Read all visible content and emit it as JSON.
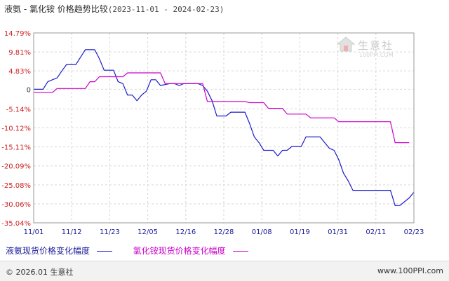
{
  "title": {
    "main": "液氨 - 氯化铵 价格趋势比较",
    "range": "(2023-11-01 - 2024-02-23)"
  },
  "watermark": {
    "name": "生意社",
    "url": "100PPI.COM"
  },
  "legend": [
    {
      "label": "液氨现货价格变化幅度",
      "color": "#1a1acc"
    },
    {
      "label": "氯化铵现货价格变化幅度",
      "color": "#cc00cc"
    }
  ],
  "footer": {
    "copyright": "© 2026.01 生意社",
    "site": "www.100PPI.com"
  },
  "chart_data": {
    "type": "line",
    "y_ticks": [
      "14.79%",
      "9.81%",
      "4.83%",
      "0",
      "-5.14%",
      "-10.12%",
      "-15.11%",
      "-20.09%",
      "-25.08%",
      "-30.06%",
      "-35.04%"
    ],
    "y_tick_values": [
      14.79,
      9.81,
      4.83,
      0,
      -5.14,
      -10.12,
      -15.11,
      -20.09,
      -25.08,
      -30.06,
      -35.04
    ],
    "ylim": [
      -35.04,
      14.79
    ],
    "x_ticks": [
      "11/01",
      "11/12",
      "11/23",
      "12/05",
      "12/16",
      "12/28",
      "01/08",
      "01/19",
      "01/31",
      "02/11",
      "02/23"
    ],
    "grid": true,
    "legend_position": "bottom",
    "series": [
      {
        "name": "液氨现货价格变化幅度",
        "color": "#1a1acc",
        "points": [
          [
            0,
            0
          ],
          [
            2,
            0
          ],
          [
            3,
            2
          ],
          [
            5,
            3
          ],
          [
            6,
            4.8
          ],
          [
            7,
            6.5
          ],
          [
            9,
            6.5
          ],
          [
            11,
            10.4
          ],
          [
            13,
            10.4
          ],
          [
            14,
            8
          ],
          [
            15,
            5
          ],
          [
            17,
            5
          ],
          [
            18,
            2
          ],
          [
            19,
            1.5
          ],
          [
            20,
            -1.5
          ],
          [
            21,
            -1.5
          ],
          [
            22,
            -3
          ],
          [
            23,
            -1.5
          ],
          [
            24,
            -0.5
          ],
          [
            25,
            2.5
          ],
          [
            26,
            2.5
          ],
          [
            27,
            1
          ],
          [
            29,
            1.5
          ],
          [
            30,
            1.5
          ],
          [
            31,
            1
          ],
          [
            32,
            1.5
          ],
          [
            35,
            1.5
          ],
          [
            36,
            1
          ],
          [
            37,
            -0.5
          ],
          [
            38,
            -3
          ],
          [
            39,
            -7
          ],
          [
            41,
            -7
          ],
          [
            42,
            -6
          ],
          [
            45,
            -6
          ],
          [
            46,
            -9
          ],
          [
            47,
            -12.5
          ],
          [
            48,
            -14
          ],
          [
            49,
            -16
          ],
          [
            51,
            -16
          ],
          [
            52,
            -17.5
          ],
          [
            53,
            -16
          ],
          [
            54,
            -16
          ],
          [
            55,
            -15
          ],
          [
            57,
            -15
          ],
          [
            58,
            -12.5
          ],
          [
            61,
            -12.5
          ],
          [
            62,
            -14
          ],
          [
            63,
            -15.5
          ],
          [
            64,
            -16
          ],
          [
            65,
            -18.5
          ],
          [
            66,
            -22
          ],
          [
            67,
            -24
          ],
          [
            68,
            -26.5
          ],
          [
            76,
            -26.5
          ],
          [
            77,
            -30.5
          ],
          [
            78,
            -30.5
          ],
          [
            79,
            -29.5
          ],
          [
            80,
            -28.5
          ],
          [
            81,
            -27
          ]
        ]
      },
      {
        "name": "氯化铵现货价格变化幅度",
        "color": "#cc00cc",
        "points": [
          [
            0,
            -0.8
          ],
          [
            4,
            -0.8
          ],
          [
            5,
            0.2
          ],
          [
            11,
            0.2
          ],
          [
            12,
            2
          ],
          [
            13,
            2
          ],
          [
            14,
            3.3
          ],
          [
            19,
            3.3
          ],
          [
            20,
            4.3
          ],
          [
            27,
            4.3
          ],
          [
            28,
            1.5
          ],
          [
            36,
            1.5
          ],
          [
            37,
            -3.2
          ],
          [
            45,
            -3.2
          ],
          [
            46,
            -3.5
          ],
          [
            49,
            -3.5
          ],
          [
            50,
            -5
          ],
          [
            53,
            -5
          ],
          [
            54,
            -6.5
          ],
          [
            58,
            -6.5
          ],
          [
            59,
            -7.5
          ],
          [
            64,
            -7.5
          ],
          [
            65,
            -8.5
          ],
          [
            76,
            -8.5
          ],
          [
            77,
            -14
          ],
          [
            80,
            -14
          ]
        ]
      }
    ]
  }
}
